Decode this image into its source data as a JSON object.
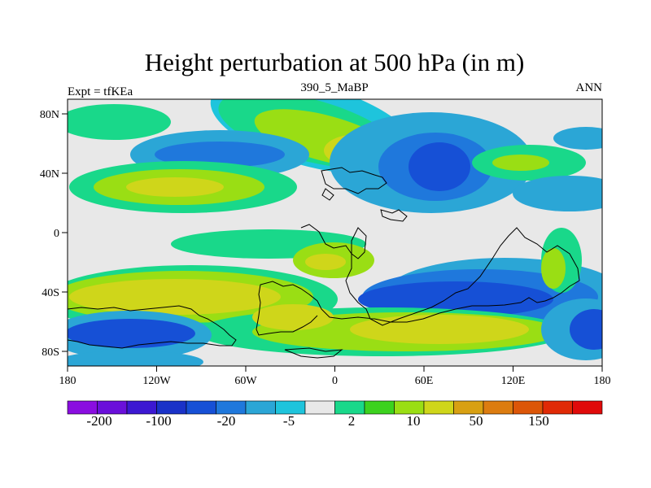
{
  "title": "Height perturbation at 500 hPa (in m)",
  "left_label": "Expt = tfKEa",
  "center_label": "390_5_MaBP",
  "right_label": "ANN",
  "x_ticks": [
    "180",
    "120W",
    "60W",
    "0",
    "60E",
    "120E",
    "180"
  ],
  "y_ticks": [
    "80N",
    "40N",
    "0",
    "40S",
    "80S"
  ],
  "colorbar": {
    "labels": [
      "-200",
      "-100",
      "-20",
      "-5",
      "2",
      "10",
      "50",
      "150"
    ],
    "colors": [
      "#8a0de0",
      "#6a10da",
      "#3c18d2",
      "#1a32c8",
      "#1650d6",
      "#1f78dc",
      "#2ba6d6",
      "#1ec4dc",
      "#e8e8e8",
      "#19d88a",
      "#3cd21e",
      "#9ade14",
      "#cfd61a",
      "#d8a012",
      "#dc7c10",
      "#dc5608",
      "#e02a06",
      "#e00a0a"
    ]
  },
  "chart_data": {
    "type": "heatmap",
    "title": "Height perturbation at 500 hPa (in m)",
    "subtitle": "390_5_MaBP",
    "experiment": "Expt = tfKEa",
    "season": "ANN",
    "xlim": [
      -180,
      180
    ],
    "ylim": [
      -90,
      90
    ],
    "x_ticks": [
      -180,
      -120,
      -60,
      0,
      60,
      120,
      180
    ],
    "y_ticks": [
      80,
      40,
      0,
      -40,
      -80
    ],
    "contour_levels": [
      -200,
      -100,
      -20,
      -5,
      2,
      10,
      50,
      150
    ],
    "field_features": [
      {
        "lon": -40,
        "lat": 72,
        "value": 30
      },
      {
        "lon": 10,
        "lat": 55,
        "value": 55
      },
      {
        "lon": -100,
        "lat": 30,
        "value": 35
      },
      {
        "lon": 60,
        "lat": 45,
        "value": -45
      },
      {
        "lon": -120,
        "lat": 53,
        "value": -25
      },
      {
        "lon": 120,
        "lat": 48,
        "value": 20
      },
      {
        "lon": -110,
        "lat": -38,
        "value": 50
      },
      {
        "lon": -20,
        "lat": -57,
        "value": 60
      },
      {
        "lon": 70,
        "lat": -65,
        "value": 65
      },
      {
        "lon": 70,
        "lat": -42,
        "value": -50
      },
      {
        "lon": -150,
        "lat": -65,
        "value": -45
      },
      {
        "lon": 170,
        "lat": -65,
        "value": -40
      },
      {
        "lon": 0,
        "lat": -25,
        "value": 20
      }
    ]
  }
}
